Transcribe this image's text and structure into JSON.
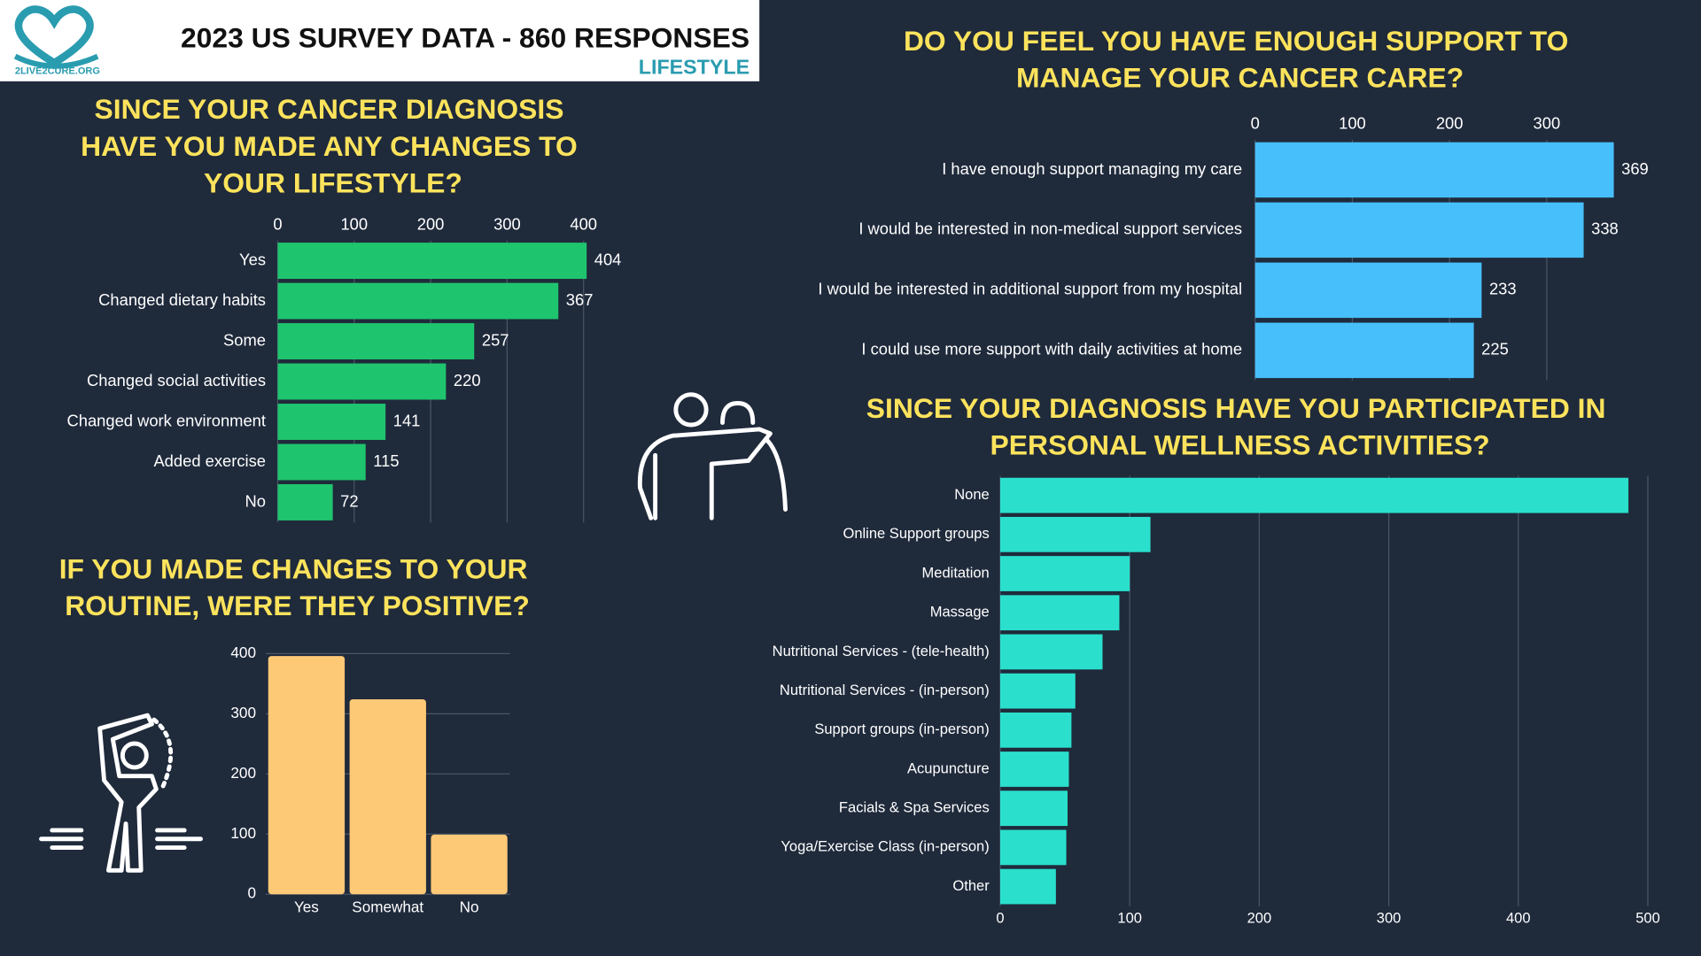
{
  "header": {
    "logo_text": "2LIVE2CURE.ORG",
    "title": "2023 US SURVEY DATA - 860 RESPONSES",
    "subtitle": "LIFESTYLE"
  },
  "chart_data": [
    {
      "type": "bar",
      "horizontal": true,
      "title": "SINCE YOUR CANCER DIAGNOSIS HAVE YOU MADE ANY CHANGES TO YOUR LIFESTYLE?",
      "categories": [
        "Yes",
        "Changed dietary habits",
        "Some",
        "Changed social activities",
        "Changed work environment",
        "Added exercise",
        "No"
      ],
      "values": [
        404,
        367,
        257,
        220,
        141,
        115,
        72
      ],
      "color": "#1fc46e",
      "show_values": true,
      "xlim": [
        0,
        410
      ],
      "xticks": [
        0,
        100,
        200,
        300,
        400
      ],
      "grid": true
    },
    {
      "type": "bar",
      "horizontal": true,
      "title": "DO YOU FEEL YOU HAVE ENOUGH SUPPORT TO MANAGE YOUR CANCER CARE?",
      "categories": [
        "I have enough support managing my care",
        "I would be interested in non-medical support services",
        "I would be interested in additional support from my hospital",
        "I could use more support with daily activities at home"
      ],
      "values": [
        369,
        338,
        233,
        225
      ],
      "color": "#47bffa",
      "show_values": true,
      "xlim": [
        0,
        375
      ],
      "xticks": [
        0,
        100,
        200,
        300
      ],
      "grid": true
    },
    {
      "type": "bar",
      "horizontal": false,
      "title": "IF YOU MADE CHANGES TO YOUR ROUTINE, WERE THEY POSITIVE?",
      "categories": [
        "Yes",
        "Somewhat",
        "No"
      ],
      "values": [
        396,
        324,
        99
      ],
      "color": "#fec976",
      "show_values": false,
      "ylim": [
        0,
        400
      ],
      "yticks": [
        0,
        100,
        200,
        300,
        400
      ],
      "grid": true
    },
    {
      "type": "bar",
      "horizontal": true,
      "title": "SINCE YOUR DIAGNOSIS HAVE YOU PARTICIPATED IN PERSONAL WELLNESS ACTIVITIES?",
      "categories": [
        "None",
        "Online Support groups",
        "Meditation",
        "Massage",
        "Nutritional Services - (tele-health)",
        "Nutritional Services - (in-person)",
        "Support groups (in-person)",
        "Acupuncture",
        "Facials & Spa Services",
        "Yoga/Exercise Class (in-person)",
        "Other"
      ],
      "values": [
        485,
        116,
        100,
        92,
        79,
        58,
        55,
        53,
        52,
        51,
        43
      ],
      "color": "#2ae0cc",
      "show_values": false,
      "xlim": [
        0,
        500
      ],
      "xticks": [
        0,
        100,
        200,
        300,
        400,
        500
      ],
      "grid": true
    }
  ]
}
